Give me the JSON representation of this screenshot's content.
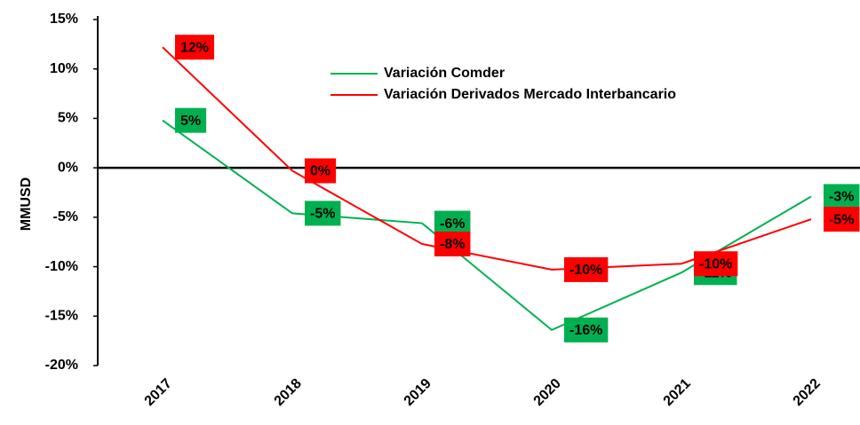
{
  "chart_data": {
    "type": "line",
    "y_label": "MMUSD",
    "categories": [
      "2017",
      "2018",
      "2019",
      "2020",
      "2021",
      "2022"
    ],
    "series": [
      {
        "name": "Variación Comder",
        "color": "#00b050",
        "label_color": "#00b050",
        "values": [
          4.8,
          -4.6,
          -5.6,
          -16.4,
          -10.6,
          -2.9
        ],
        "value_labels": [
          "5%",
          "-5%",
          "-6%",
          "-16%",
          "-11%",
          "-3%"
        ]
      },
      {
        "name": "Variación Derivados Mercado Interbancario",
        "color": "#ff0000",
        "label_color": "#ff0000",
        "values": [
          12.2,
          -0.3,
          -7.7,
          -10.3,
          -9.7,
          -5.2
        ],
        "value_labels": [
          "12%",
          "0%",
          "-8%",
          "-10%",
          "-10%",
          "-5%"
        ]
      }
    ],
    "ylim": [
      -20,
      15
    ],
    "yticks": [
      {
        "value": -20,
        "label": "-20%"
      },
      {
        "value": -15,
        "label": "-15%"
      },
      {
        "value": -10,
        "label": "-10%"
      },
      {
        "value": -5,
        "label": "-5%"
      },
      {
        "value": 0,
        "label": "0%"
      },
      {
        "value": 5,
        "label": "5%"
      },
      {
        "value": 10,
        "label": "10%"
      },
      {
        "value": 15,
        "label": "15%"
      }
    ],
    "grid": false
  }
}
